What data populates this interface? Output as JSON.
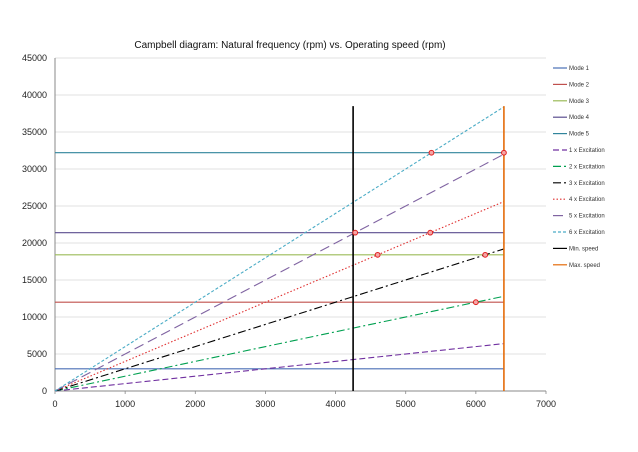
{
  "chart_data": {
    "type": "line",
    "title": "Campbell diagram: Natural frequency (rpm) vs. Operating speed (rpm)",
    "xlabel": "",
    "ylabel": "",
    "xlim": [
      0,
      7000
    ],
    "ylim": [
      0,
      45000
    ],
    "xticks": [
      0,
      1000,
      2000,
      3000,
      4000,
      5000,
      6000,
      7000
    ],
    "yticks": [
      0,
      5000,
      10000,
      15000,
      20000,
      25000,
      30000,
      35000,
      40000,
      45000
    ],
    "grid": true,
    "legend_position": "right",
    "series": [
      {
        "name": "Mode 1",
        "kind": "hline",
        "x": [
          0,
          6400
        ],
        "y": [
          3000,
          3000
        ],
        "color": "#4a6fb5",
        "dash": "solid"
      },
      {
        "name": "Mode 2",
        "kind": "hline",
        "x": [
          0,
          6400
        ],
        "y": [
          12000,
          12000
        ],
        "color": "#c0504d",
        "dash": "solid"
      },
      {
        "name": "Mode 3",
        "kind": "hline",
        "x": [
          0,
          6400
        ],
        "y": [
          18400,
          18400
        ],
        "color": "#9bbb59",
        "dash": "solid"
      },
      {
        "name": "Mode 4",
        "kind": "hline",
        "x": [
          0,
          6400
        ],
        "y": [
          21400,
          21400
        ],
        "color": "#5b4e8f",
        "dash": "solid"
      },
      {
        "name": "Mode 5",
        "kind": "hline",
        "x": [
          0,
          6400
        ],
        "y": [
          32200,
          32200
        ],
        "color": "#31859c",
        "dash": "solid"
      },
      {
        "name": "1 x Excitation",
        "kind": "line",
        "x": [
          0,
          6400
        ],
        "y": [
          0,
          6400
        ],
        "color": "#7030a0",
        "dash": "6,3"
      },
      {
        "name": "2 x Excitation",
        "kind": "line",
        "x": [
          0,
          6400
        ],
        "y": [
          0,
          12800
        ],
        "color": "#00a050",
        "dash": "8,3,2,3"
      },
      {
        "name": "3 x Excitation",
        "kind": "line",
        "x": [
          0,
          6400
        ],
        "y": [
          0,
          19200
        ],
        "color": "#000000",
        "dash": "8,3,2,3"
      },
      {
        "name": "4 x Excitation",
        "kind": "line",
        "x": [
          0,
          6400
        ],
        "y": [
          0,
          25600
        ],
        "color": "#e03030",
        "dash": "1.5,2"
      },
      {
        "name": "5 x Excitation",
        "kind": "line",
        "x": [
          0,
          6400
        ],
        "y": [
          0,
          32000
        ],
        "color": "#8064a2",
        "dash": "10,5"
      },
      {
        "name": "6 x Excitation",
        "kind": "line",
        "x": [
          0,
          6400
        ],
        "y": [
          0,
          38400
        ],
        "color": "#4bacc6",
        "dash": "3,2"
      },
      {
        "name": "Min. speed",
        "kind": "vline",
        "x": [
          4250,
          4250
        ],
        "y": [
          0,
          38500
        ],
        "color": "#000000",
        "dash": "solid"
      },
      {
        "name": "Max. speed",
        "kind": "vline",
        "x": [
          6400,
          6400
        ],
        "y": [
          0,
          38500
        ],
        "color": "#e46c0a",
        "dash": "solid"
      }
    ],
    "intersections": [
      {
        "x": 6000,
        "y": 12000
      },
      {
        "x": 6133,
        "y": 18400
      },
      {
        "x": 4600,
        "y": 18400
      },
      {
        "x": 4280,
        "y": 21400
      },
      {
        "x": 5350,
        "y": 21400
      },
      {
        "x": 5367,
        "y": 32200
      },
      {
        "x": 6400,
        "y": 32200
      }
    ],
    "legend_labels": [
      "Mode 1",
      "Mode 2",
      "Mode 3",
      "Mode 4",
      "Mode 5",
      "1 x Excitation",
      "2 x Excitation",
      "3 x Excitation",
      "4 x Excitation",
      "5 x Excitation",
      "6 x Excitation",
      "Min. speed",
      "Max. speed"
    ]
  }
}
